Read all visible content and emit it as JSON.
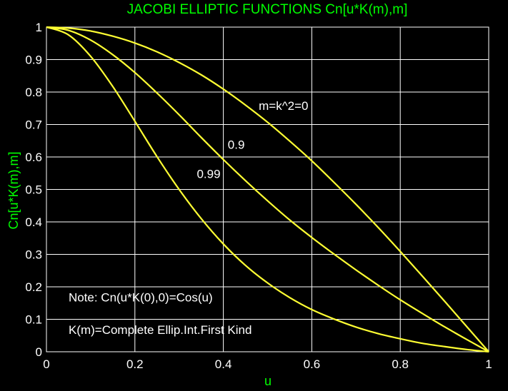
{
  "chart_data": {
    "type": "line",
    "title": "JACOBI ELLIPTIC FUNCTIONS Cn[u*K(m),m]",
    "xlabel": "u",
    "ylabel": "Cn[u*K(m),m]",
    "xlim": [
      0,
      1
    ],
    "ylim": [
      0,
      1
    ],
    "xticks": [
      "0",
      "0.2",
      "0.4",
      "0.6",
      "0.8",
      "1"
    ],
    "yticks": [
      "0",
      "0.1",
      "0.2",
      "0.3",
      "0.4",
      "0.5",
      "0.6",
      "0.7",
      "0.8",
      "0.9",
      "1"
    ],
    "grid": true,
    "background": "#000000",
    "axes_color": "#ffffff",
    "grid_color": "#ffffff",
    "line_color": "#ffff33",
    "title_color": "#00ff00",
    "x": [
      0,
      0.05,
      0.1,
      0.15,
      0.2,
      0.25,
      0.3,
      0.35,
      0.4,
      0.45,
      0.5,
      0.55,
      0.6,
      0.65,
      0.7,
      0.75,
      0.8,
      0.85,
      0.9,
      0.95,
      1
    ],
    "series": [
      {
        "values": [
          1.0,
          0.997,
          0.988,
          0.972,
          0.951,
          0.924,
          0.891,
          0.853,
          0.809,
          0.76,
          0.707,
          0.649,
          0.588,
          0.522,
          0.454,
          0.383,
          0.309,
          0.233,
          0.156,
          0.078,
          0.0
        ]
      },
      {
        "values": [
          1.0,
          0.99,
          0.96,
          0.915,
          0.86,
          0.797,
          0.73,
          0.66,
          0.592,
          0.527,
          0.465,
          0.406,
          0.352,
          0.301,
          0.252,
          0.205,
          0.16,
          0.118,
          0.077,
          0.038,
          0.0
        ]
      },
      {
        "values": [
          1.0,
          0.976,
          0.91,
          0.817,
          0.71,
          0.601,
          0.5,
          0.41,
          0.332,
          0.266,
          0.212,
          0.167,
          0.13,
          0.101,
          0.076,
          0.056,
          0.04,
          0.026,
          0.016,
          0.007,
          0.0
        ]
      }
    ],
    "annotations": [
      {
        "text": "m=k^2=0",
        "x": 0.48,
        "y": 0.745
      },
      {
        "text": "0.9",
        "x": 0.41,
        "y": 0.625
      },
      {
        "text": "0.99",
        "x": 0.34,
        "y": 0.535
      },
      {
        "text": "Note: Cn(u*K(0),0)=Cos(u)",
        "x": 0.05,
        "y": 0.155
      },
      {
        "text": "K(m)=Complete Ellip.Int.First Kind",
        "x": 0.05,
        "y": 0.055
      }
    ]
  }
}
